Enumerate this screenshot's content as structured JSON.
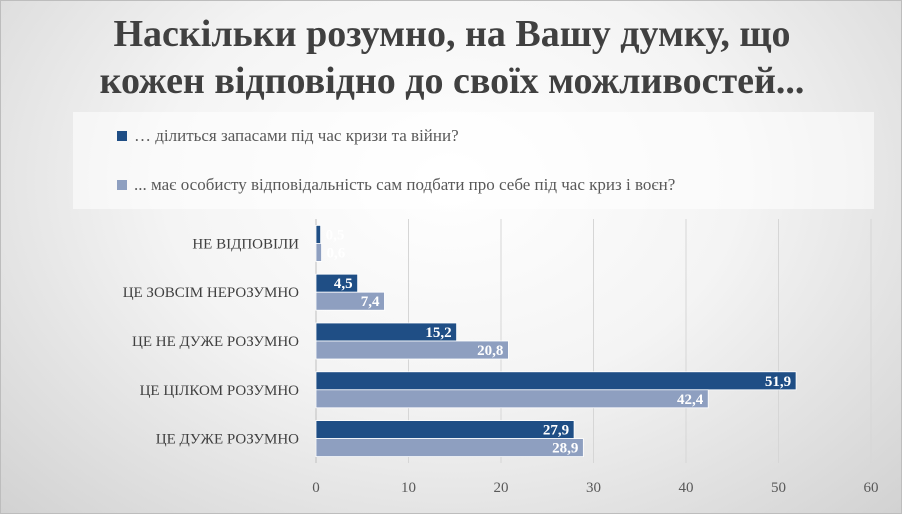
{
  "chart_data": {
    "type": "bar",
    "orientation": "horizontal",
    "title": "Наскільки розумно, на Вашу думку, що кожен відповідно до своїх можливостей...",
    "title_lines": [
      "Наскільки розумно, на Вашу думку, що",
      "кожен відповідно до своїх можливостей..."
    ],
    "categories": [
      "НЕ ВІДПОВІЛИ",
      "ЦЕ ЗОВСІМ НЕРОЗУМНО",
      "ЦЕ НЕ ДУЖЕ РОЗУМНО",
      "ЦЕ ЦІЛКОМ РОЗУМНО",
      "ЦЕ ДУЖЕ РОЗУМНО"
    ],
    "series": [
      {
        "name": "… ділиться запасами під час кризи та війни?",
        "values": [
          0.5,
          4.5,
          15.2,
          51.9,
          27.9
        ],
        "labels": [
          "0,5",
          "4,5",
          "15,2",
          "51,9",
          "27,9"
        ],
        "color": "#1f4e85"
      },
      {
        "name": "... має особисту відповідальність сам подбати про себе під час криз і воєн?",
        "values": [
          0.6,
          7.4,
          20.8,
          42.4,
          28.9
        ],
        "labels": [
          "0,6",
          "7,4",
          "20,8",
          "42,4",
          "28,9"
        ],
        "color": "#8e9fc0"
      }
    ],
    "x_ticks": [
      "0",
      "10",
      "20",
      "30",
      "40",
      "50",
      "60"
    ],
    "xlim": [
      0,
      60
    ],
    "xlabel": "",
    "ylabel": "",
    "grid": true,
    "legend_position": "top"
  }
}
